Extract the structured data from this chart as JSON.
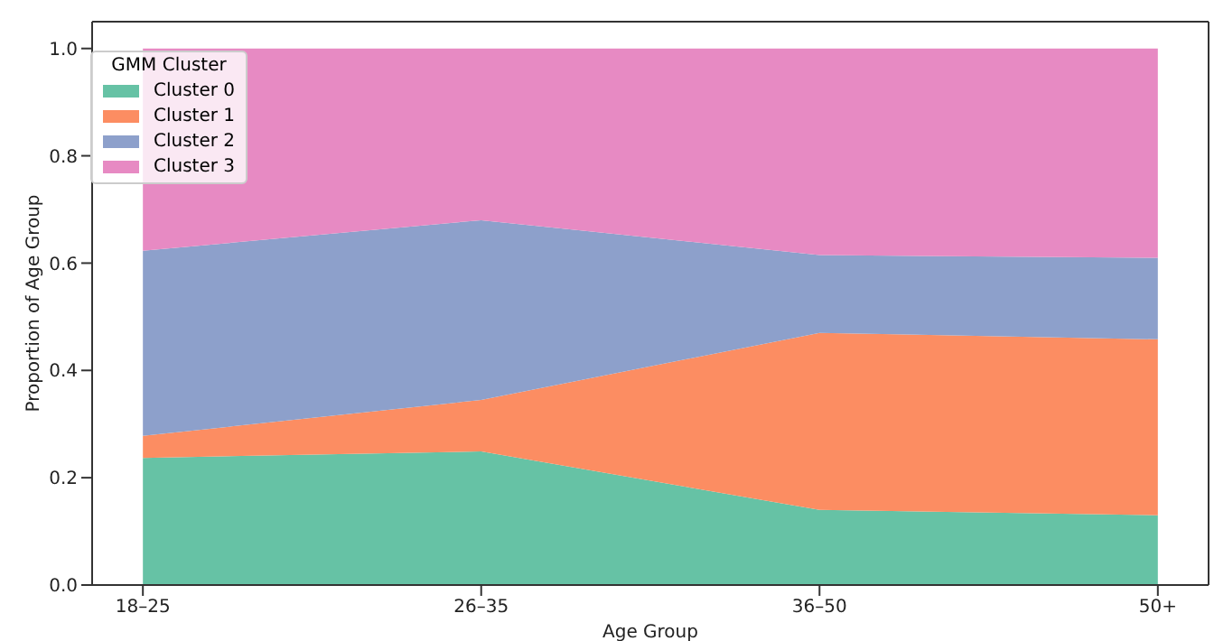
{
  "chart_data": {
    "type": "area",
    "stacked": true,
    "xlabel": "Age Group",
    "ylabel": "Proportion of Age Group",
    "legend_title": "GMM Cluster",
    "legend": "top left",
    "grid": false,
    "categories": [
      "18–25",
      "26–35",
      "36–50",
      "50+"
    ],
    "ylim": [
      0,
      1.05
    ],
    "yticks": [
      {
        "value": 0,
        "label": "0.0"
      },
      {
        "value": 0.2,
        "label": "0.2"
      },
      {
        "value": 0.4,
        "label": "0.4"
      },
      {
        "value": 0.6,
        "label": "0.6"
      },
      {
        "value": 0.8,
        "label": "0.8"
      },
      {
        "value": 1,
        "label": "1.0"
      }
    ],
    "series": [
      {
        "name": "Cluster 0",
        "color": "#66c2a5",
        "values": [
          0.237,
          0.249,
          0.14,
          0.13
        ]
      },
      {
        "name": "Cluster 1",
        "color": "#fc8d62",
        "values": [
          0.041,
          0.096,
          0.33,
          0.328
        ]
      },
      {
        "name": "Cluster 2",
        "color": "#8da0cb",
        "values": [
          0.345,
          0.335,
          0.145,
          0.152
        ]
      },
      {
        "name": "Cluster 3",
        "color": "#e78ac3",
        "values": [
          0.377,
          0.32,
          0.385,
          0.39
        ]
      }
    ]
  }
}
